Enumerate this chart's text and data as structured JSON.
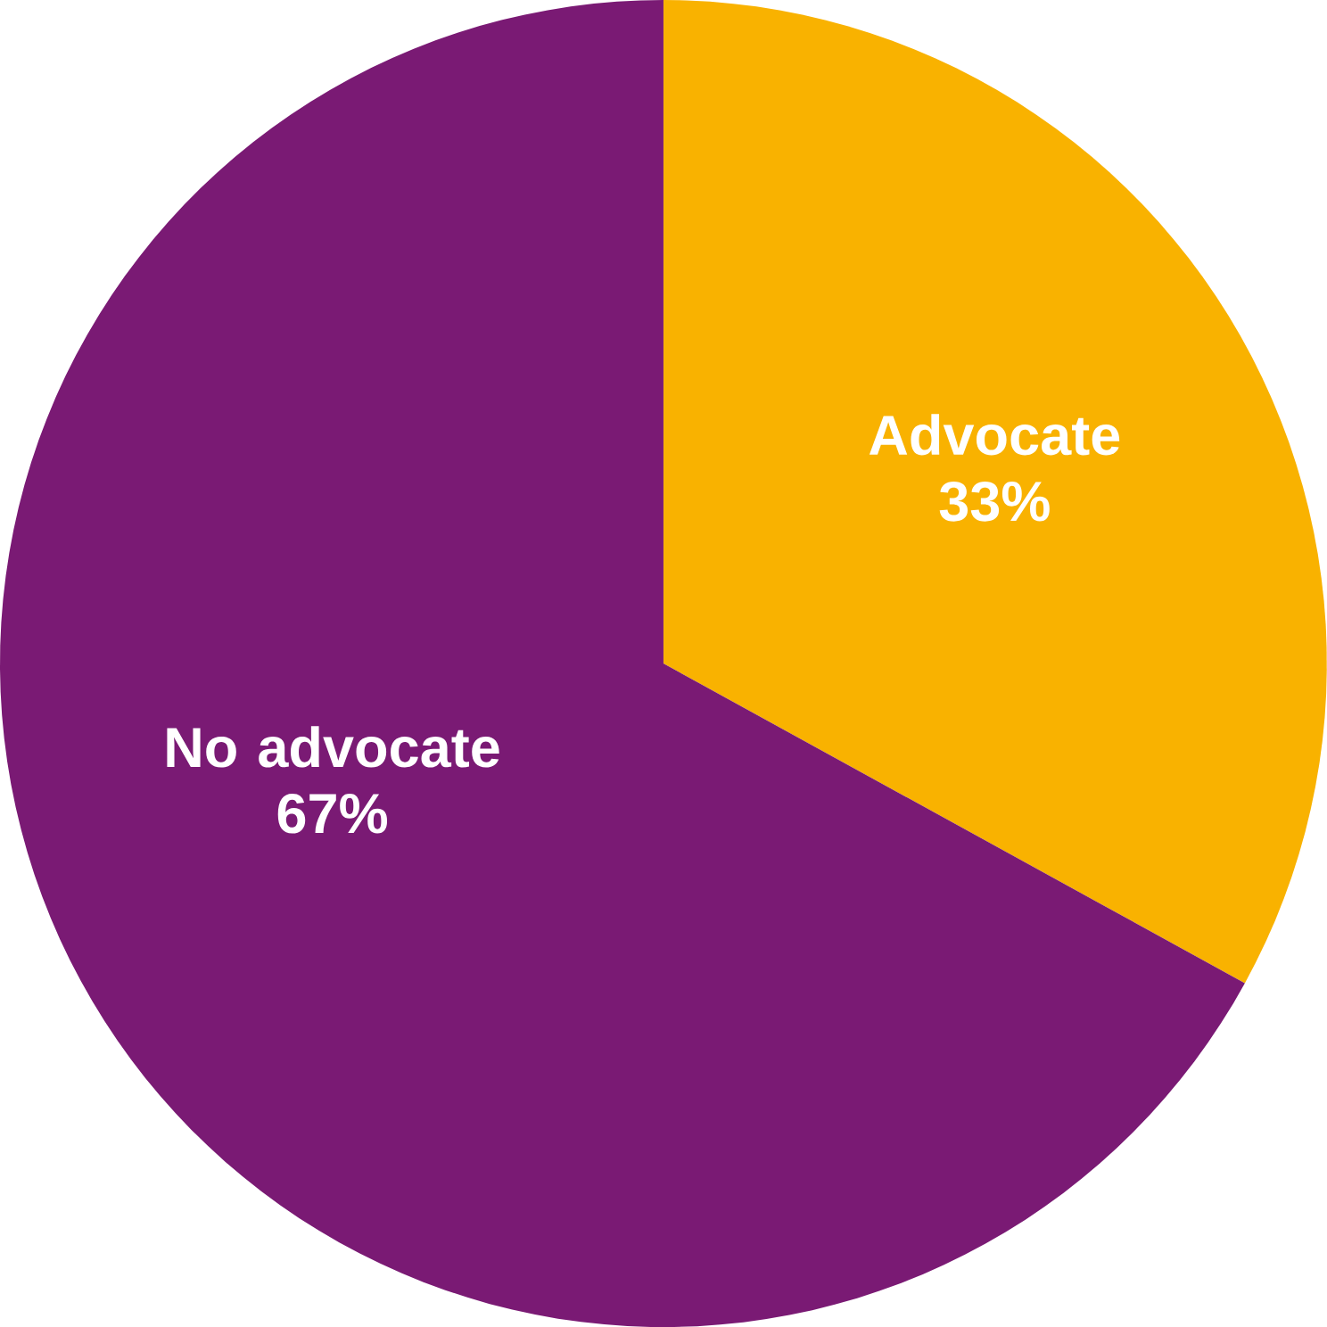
{
  "chart_data": {
    "type": "pie",
    "categories": [
      "Advocate",
      "No advocate"
    ],
    "values": [
      33,
      67
    ],
    "colors": [
      "#f9b200",
      "#7a1a74"
    ],
    "value_labels": [
      "33%",
      "67%"
    ]
  }
}
